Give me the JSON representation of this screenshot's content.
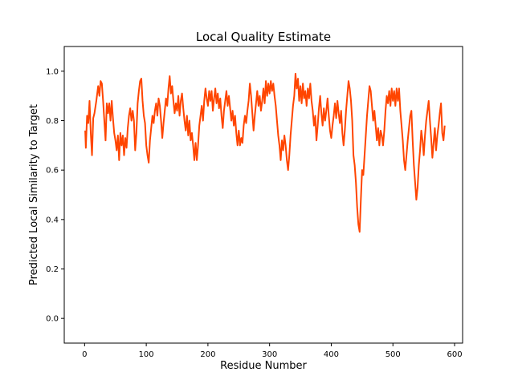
{
  "chart_data": {
    "type": "line",
    "title": "Local Quality Estimate",
    "xlabel": "Residue Number",
    "ylabel": "Predicted Local Similarity to Target",
    "xlim": [
      -33,
      613
    ],
    "ylim": [
      -0.1,
      1.1
    ],
    "xticks": [
      0,
      100,
      200,
      300,
      400,
      500,
      600
    ],
    "xtick_labels": [
      "0",
      "100",
      "200",
      "300",
      "400",
      "500",
      "600"
    ],
    "yticks": [
      0.0,
      0.2,
      0.4,
      0.6,
      0.8,
      1.0
    ],
    "ytick_labels": [
      "0.0",
      "0.2",
      "0.4",
      "0.6",
      "0.8",
      "1.0"
    ],
    "grid": false,
    "series": [
      {
        "color": "#ff4500",
        "points": [
          [
            1,
            0.76
          ],
          [
            2,
            0.69
          ],
          [
            4,
            0.82
          ],
          [
            6,
            0.79
          ],
          [
            8,
            0.88
          ],
          [
            10,
            0.75
          ],
          [
            12,
            0.66
          ],
          [
            14,
            0.81
          ],
          [
            16,
            0.83
          ],
          [
            19,
            0.88
          ],
          [
            22,
            0.94
          ],
          [
            24,
            0.9
          ],
          [
            26,
            0.96
          ],
          [
            28,
            0.95
          ],
          [
            30,
            0.88
          ],
          [
            32,
            0.8
          ],
          [
            34,
            0.72
          ],
          [
            36,
            0.87
          ],
          [
            38,
            0.83
          ],
          [
            40,
            0.87
          ],
          [
            42,
            0.8
          ],
          [
            44,
            0.88
          ],
          [
            46,
            0.81
          ],
          [
            48,
            0.75
          ],
          [
            50,
            0.72
          ],
          [
            52,
            0.68
          ],
          [
            54,
            0.74
          ],
          [
            56,
            0.64
          ],
          [
            58,
            0.75
          ],
          [
            60,
            0.7
          ],
          [
            62,
            0.74
          ],
          [
            64,
            0.66
          ],
          [
            66,
            0.73
          ],
          [
            68,
            0.69
          ],
          [
            70,
            0.77
          ],
          [
            72,
            0.82
          ],
          [
            74,
            0.85
          ],
          [
            76,
            0.8
          ],
          [
            78,
            0.84
          ],
          [
            80,
            0.8
          ],
          [
            82,
            0.68
          ],
          [
            84,
            0.75
          ],
          [
            86,
            0.87
          ],
          [
            88,
            0.92
          ],
          [
            90,
            0.96
          ],
          [
            92,
            0.97
          ],
          [
            94,
            0.88
          ],
          [
            96,
            0.82
          ],
          [
            98,
            0.79
          ],
          [
            100,
            0.7
          ],
          [
            102,
            0.66
          ],
          [
            104,
            0.63
          ],
          [
            106,
            0.72
          ],
          [
            108,
            0.77
          ],
          [
            110,
            0.82
          ],
          [
            112,
            0.79
          ],
          [
            114,
            0.84
          ],
          [
            116,
            0.87
          ],
          [
            118,
            0.82
          ],
          [
            120,
            0.89
          ],
          [
            122,
            0.86
          ],
          [
            124,
            0.8
          ],
          [
            126,
            0.73
          ],
          [
            128,
            0.79
          ],
          [
            130,
            0.84
          ],
          [
            132,
            0.89
          ],
          [
            134,
            0.86
          ],
          [
            136,
            0.93
          ],
          [
            138,
            0.98
          ],
          [
            140,
            0.91
          ],
          [
            142,
            0.94
          ],
          [
            144,
            0.88
          ],
          [
            146,
            0.83
          ],
          [
            148,
            0.87
          ],
          [
            150,
            0.84
          ],
          [
            152,
            0.9
          ],
          [
            154,
            0.82
          ],
          [
            156,
            0.88
          ],
          [
            158,
            0.91
          ],
          [
            160,
            0.85
          ],
          [
            162,
            0.8
          ],
          [
            164,
            0.76
          ],
          [
            166,
            0.82
          ],
          [
            168,
            0.74
          ],
          [
            170,
            0.8
          ],
          [
            172,
            0.72
          ],
          [
            174,
            0.75
          ],
          [
            176,
            0.7
          ],
          [
            178,
            0.64
          ],
          [
            180,
            0.71
          ],
          [
            182,
            0.64
          ],
          [
            184,
            0.7
          ],
          [
            186,
            0.78
          ],
          [
            188,
            0.82
          ],
          [
            190,
            0.86
          ],
          [
            192,
            0.8
          ],
          [
            194,
            0.88
          ],
          [
            196,
            0.93
          ],
          [
            198,
            0.89
          ],
          [
            200,
            0.86
          ],
          [
            202,
            0.92
          ],
          [
            204,
            0.88
          ],
          [
            206,
            0.92
          ],
          [
            208,
            0.84
          ],
          [
            210,
            0.89
          ],
          [
            212,
            0.93
          ],
          [
            214,
            0.87
          ],
          [
            216,
            0.91
          ],
          [
            218,
            0.85
          ],
          [
            220,
            0.89
          ],
          [
            222,
            0.82
          ],
          [
            224,
            0.77
          ],
          [
            226,
            0.84
          ],
          [
            228,
            0.88
          ],
          [
            230,
            0.92
          ],
          [
            232,
            0.86
          ],
          [
            234,
            0.9
          ],
          [
            236,
            0.85
          ],
          [
            238,
            0.8
          ],
          [
            240,
            0.84
          ],
          [
            242,
            0.78
          ],
          [
            244,
            0.82
          ],
          [
            246,
            0.75
          ],
          [
            248,
            0.7
          ],
          [
            250,
            0.76
          ],
          [
            252,
            0.7
          ],
          [
            254,
            0.73
          ],
          [
            256,
            0.71
          ],
          [
            258,
            0.78
          ],
          [
            260,
            0.82
          ],
          [
            262,
            0.79
          ],
          [
            264,
            0.84
          ],
          [
            266,
            0.88
          ],
          [
            268,
            0.95
          ],
          [
            270,
            0.9
          ],
          [
            272,
            0.83
          ],
          [
            274,
            0.76
          ],
          [
            276,
            0.82
          ],
          [
            278,
            0.87
          ],
          [
            280,
            0.92
          ],
          [
            282,
            0.86
          ],
          [
            284,
            0.9
          ],
          [
            286,
            0.84
          ],
          [
            288,
            0.88
          ],
          [
            290,
            0.93
          ],
          [
            292,
            0.87
          ],
          [
            294,
            0.96
          ],
          [
            296,
            0.9
          ],
          [
            298,
            0.95
          ],
          [
            300,
            0.91
          ],
          [
            302,
            0.96
          ],
          [
            304,
            0.92
          ],
          [
            306,
            0.95
          ],
          [
            308,
            0.9
          ],
          [
            310,
            0.86
          ],
          [
            312,
            0.8
          ],
          [
            314,
            0.74
          ],
          [
            316,
            0.7
          ],
          [
            318,
            0.64
          ],
          [
            320,
            0.72
          ],
          [
            322,
            0.68
          ],
          [
            324,
            0.74
          ],
          [
            326,
            0.7
          ],
          [
            328,
            0.64
          ],
          [
            330,
            0.6
          ],
          [
            332,
            0.66
          ],
          [
            334,
            0.74
          ],
          [
            336,
            0.8
          ],
          [
            338,
            0.86
          ],
          [
            340,
            0.9
          ],
          [
            342,
            0.99
          ],
          [
            344,
            0.93
          ],
          [
            346,
            0.97
          ],
          [
            348,
            0.88
          ],
          [
            350,
            0.94
          ],
          [
            352,
            0.87
          ],
          [
            354,
            0.95
          ],
          [
            356,
            0.89
          ],
          [
            358,
            0.92
          ],
          [
            360,
            0.86
          ],
          [
            362,
            0.93
          ],
          [
            364,
            0.89
          ],
          [
            366,
            0.95
          ],
          [
            368,
            0.88
          ],
          [
            370,
            0.84
          ],
          [
            372,
            0.78
          ],
          [
            374,
            0.82
          ],
          [
            376,
            0.72
          ],
          [
            378,
            0.78
          ],
          [
            380,
            0.85
          ],
          [
            382,
            0.9
          ],
          [
            384,
            0.83
          ],
          [
            386,
            0.78
          ],
          [
            388,
            0.85
          ],
          [
            390,
            0.8
          ],
          [
            392,
            0.84
          ],
          [
            394,
            0.89
          ],
          [
            396,
            0.82
          ],
          [
            398,
            0.76
          ],
          [
            400,
            0.73
          ],
          [
            402,
            0.78
          ],
          [
            404,
            0.82
          ],
          [
            406,
            0.87
          ],
          [
            408,
            0.81
          ],
          [
            410,
            0.88
          ],
          [
            412,
            0.83
          ],
          [
            414,
            0.79
          ],
          [
            416,
            0.84
          ],
          [
            418,
            0.75
          ],
          [
            420,
            0.7
          ],
          [
            422,
            0.76
          ],
          [
            424,
            0.84
          ],
          [
            426,
            0.9
          ],
          [
            428,
            0.96
          ],
          [
            430,
            0.93
          ],
          [
            432,
            0.88
          ],
          [
            434,
            0.8
          ],
          [
            436,
            0.66
          ],
          [
            438,
            0.62
          ],
          [
            440,
            0.55
          ],
          [
            442,
            0.45
          ],
          [
            444,
            0.38
          ],
          [
            446,
            0.35
          ],
          [
            448,
            0.48
          ],
          [
            450,
            0.6
          ],
          [
            452,
            0.58
          ],
          [
            454,
            0.66
          ],
          [
            456,
            0.74
          ],
          [
            458,
            0.82
          ],
          [
            460,
            0.88
          ],
          [
            462,
            0.94
          ],
          [
            464,
            0.92
          ],
          [
            466,
            0.86
          ],
          [
            468,
            0.8
          ],
          [
            470,
            0.84
          ],
          [
            472,
            0.78
          ],
          [
            474,
            0.72
          ],
          [
            476,
            0.77
          ],
          [
            478,
            0.7
          ],
          [
            480,
            0.76
          ],
          [
            482,
            0.74
          ],
          [
            484,
            0.7
          ],
          [
            486,
            0.76
          ],
          [
            488,
            0.84
          ],
          [
            490,
            0.9
          ],
          [
            492,
            0.87
          ],
          [
            494,
            0.92
          ],
          [
            496,
            0.86
          ],
          [
            498,
            0.93
          ],
          [
            500,
            0.88
          ],
          [
            502,
            0.92
          ],
          [
            504,
            0.86
          ],
          [
            506,
            0.93
          ],
          [
            508,
            0.88
          ],
          [
            510,
            0.93
          ],
          [
            512,
            0.84
          ],
          [
            514,
            0.78
          ],
          [
            516,
            0.72
          ],
          [
            518,
            0.64
          ],
          [
            520,
            0.6
          ],
          [
            522,
            0.66
          ],
          [
            524,
            0.72
          ],
          [
            526,
            0.77
          ],
          [
            528,
            0.82
          ],
          [
            530,
            0.84
          ],
          [
            532,
            0.72
          ],
          [
            534,
            0.62
          ],
          [
            536,
            0.55
          ],
          [
            538,
            0.48
          ],
          [
            540,
            0.53
          ],
          [
            542,
            0.62
          ],
          [
            544,
            0.68
          ],
          [
            546,
            0.76
          ],
          [
            548,
            0.72
          ],
          [
            550,
            0.66
          ],
          [
            552,
            0.74
          ],
          [
            554,
            0.8
          ],
          [
            556,
            0.84
          ],
          [
            558,
            0.88
          ],
          [
            560,
            0.8
          ],
          [
            562,
            0.73
          ],
          [
            564,
            0.65
          ],
          [
            566,
            0.71
          ],
          [
            568,
            0.77
          ],
          [
            570,
            0.68
          ],
          [
            572,
            0.74
          ],
          [
            574,
            0.78
          ],
          [
            576,
            0.83
          ],
          [
            578,
            0.87
          ],
          [
            580,
            0.75
          ],
          [
            582,
            0.72
          ],
          [
            584,
            0.78
          ]
        ]
      }
    ]
  }
}
